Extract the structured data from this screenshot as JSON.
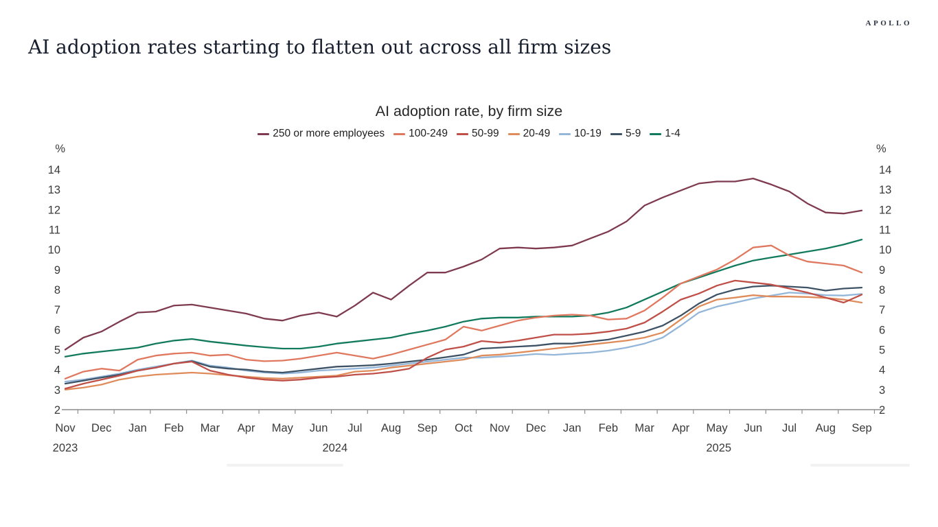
{
  "page": {
    "brand": "APOLLO",
    "title": "AI adoption rates starting to flatten out across all firm sizes"
  },
  "chart_data": {
    "type": "line",
    "title": "AI adoption rate, by firm size",
    "unit_label": "%",
    "ylim": [
      2,
      14
    ],
    "yticks": [
      2,
      3,
      4,
      5,
      6,
      7,
      8,
      9,
      10,
      11,
      12,
      13,
      14
    ],
    "grid": "off",
    "legend_position": "top",
    "x_months": [
      "Nov",
      "Dec",
      "Jan",
      "Feb",
      "Mar",
      "Apr",
      "May",
      "Jun",
      "Jul",
      "Aug",
      "Sep",
      "Oct",
      "Nov",
      "Dec",
      "Jan",
      "Feb",
      "Mar",
      "Apr",
      "May",
      "Jun",
      "Jul",
      "Aug",
      "Sep"
    ],
    "x_years": [
      {
        "label": "2023",
        "month_index": 0
      },
      {
        "label": "2024",
        "month_index": 7.45
      },
      {
        "label": "2025",
        "month_index": 18.05
      }
    ],
    "points_per_month": 2,
    "x_note": "bi-weekly survey periods, Nov 2023 - Sep 2025",
    "series": [
      {
        "name": "250 or more employees",
        "color": "#7e3a4e",
        "values": [
          5.0,
          5.6,
          5.9,
          6.4,
          6.85,
          6.9,
          7.2,
          7.25,
          7.1,
          6.95,
          6.8,
          6.55,
          6.45,
          6.7,
          6.85,
          6.65,
          7.2,
          7.85,
          7.5,
          8.2,
          8.85,
          8.85,
          9.15,
          9.5,
          10.05,
          10.1,
          10.05,
          10.1,
          10.2,
          10.55,
          10.9,
          11.4,
          12.2,
          12.6,
          12.95,
          13.3,
          13.4,
          13.4,
          13.55,
          13.25,
          12.9,
          12.3,
          11.85,
          11.8,
          11.95
        ]
      },
      {
        "name": "100-249",
        "color": "#e0785f",
        "values": [
          3.55,
          3.9,
          4.05,
          3.95,
          4.5,
          4.7,
          4.8,
          4.85,
          4.7,
          4.75,
          4.5,
          4.42,
          4.45,
          4.55,
          4.7,
          4.85,
          4.7,
          4.55,
          4.75,
          5.0,
          5.25,
          5.5,
          6.15,
          5.95,
          6.2,
          6.45,
          6.6,
          6.7,
          6.75,
          6.7,
          6.5,
          6.55,
          6.95,
          7.6,
          8.3,
          8.65,
          9.0,
          9.5,
          10.1,
          10.2,
          9.7,
          9.4,
          9.3,
          9.2,
          8.85
        ]
      },
      {
        "name": "50-99",
        "color": "#c04f48",
        "values": [
          3.05,
          3.3,
          3.5,
          3.7,
          3.95,
          4.1,
          4.3,
          4.4,
          3.95,
          3.75,
          3.6,
          3.5,
          3.45,
          3.5,
          3.6,
          3.65,
          3.75,
          3.8,
          3.9,
          4.05,
          4.6,
          5.0,
          5.15,
          5.43,
          5.35,
          5.45,
          5.6,
          5.75,
          5.75,
          5.8,
          5.9,
          6.05,
          6.35,
          6.9,
          7.5,
          7.8,
          8.2,
          8.45,
          8.35,
          8.25,
          8.05,
          7.85,
          7.6,
          7.35,
          7.75
        ]
      },
      {
        "name": "20-49",
        "color": "#df8c5a",
        "values": [
          3.0,
          3.1,
          3.25,
          3.5,
          3.65,
          3.75,
          3.8,
          3.85,
          3.8,
          3.72,
          3.65,
          3.58,
          3.55,
          3.6,
          3.65,
          3.7,
          3.9,
          3.95,
          4.1,
          4.2,
          4.3,
          4.4,
          4.5,
          4.7,
          4.75,
          4.85,
          4.95,
          5.05,
          5.15,
          5.25,
          5.35,
          5.45,
          5.6,
          5.85,
          6.5,
          7.15,
          7.5,
          7.6,
          7.72,
          7.65,
          7.65,
          7.63,
          7.58,
          7.5,
          7.35
        ]
      },
      {
        "name": "10-19",
        "color": "#94b6d9",
        "values": [
          3.4,
          3.5,
          3.65,
          3.8,
          4.0,
          4.15,
          4.3,
          4.45,
          4.2,
          4.1,
          3.95,
          3.85,
          3.8,
          3.85,
          3.95,
          4.0,
          4.05,
          4.1,
          4.2,
          4.3,
          4.4,
          4.5,
          4.6,
          4.6,
          4.65,
          4.7,
          4.78,
          4.74,
          4.8,
          4.85,
          4.95,
          5.1,
          5.3,
          5.6,
          6.2,
          6.85,
          7.15,
          7.35,
          7.55,
          7.7,
          7.85,
          7.8,
          7.72,
          7.7,
          7.78
        ]
      },
      {
        "name": "5-9",
        "color": "#3e5266",
        "values": [
          3.3,
          3.45,
          3.6,
          3.75,
          3.95,
          4.1,
          4.3,
          4.42,
          4.15,
          4.05,
          4.0,
          3.9,
          3.85,
          3.95,
          4.05,
          4.15,
          4.18,
          4.22,
          4.3,
          4.4,
          4.5,
          4.62,
          4.75,
          5.05,
          5.1,
          5.15,
          5.2,
          5.3,
          5.3,
          5.4,
          5.5,
          5.7,
          5.9,
          6.2,
          6.7,
          7.3,
          7.75,
          8.0,
          8.15,
          8.2,
          8.15,
          8.1,
          7.95,
          8.05,
          8.1
        ]
      },
      {
        "name": "1-4",
        "color": "#127a5c",
        "values": [
          4.65,
          4.8,
          4.9,
          5.0,
          5.1,
          5.3,
          5.45,
          5.53,
          5.4,
          5.3,
          5.2,
          5.12,
          5.05,
          5.05,
          5.15,
          5.3,
          5.4,
          5.5,
          5.6,
          5.8,
          5.95,
          6.15,
          6.4,
          6.55,
          6.6,
          6.6,
          6.65,
          6.65,
          6.65,
          6.7,
          6.85,
          7.1,
          7.5,
          7.9,
          8.3,
          8.6,
          8.9,
          9.2,
          9.45,
          9.6,
          9.75,
          9.9,
          10.05,
          10.25,
          10.5
        ]
      }
    ],
    "z_order": [
      "10-19",
      "20-49",
      "5-9",
      "50-99",
      "1-4",
      "100-249",
      "250 or more employees"
    ]
  }
}
